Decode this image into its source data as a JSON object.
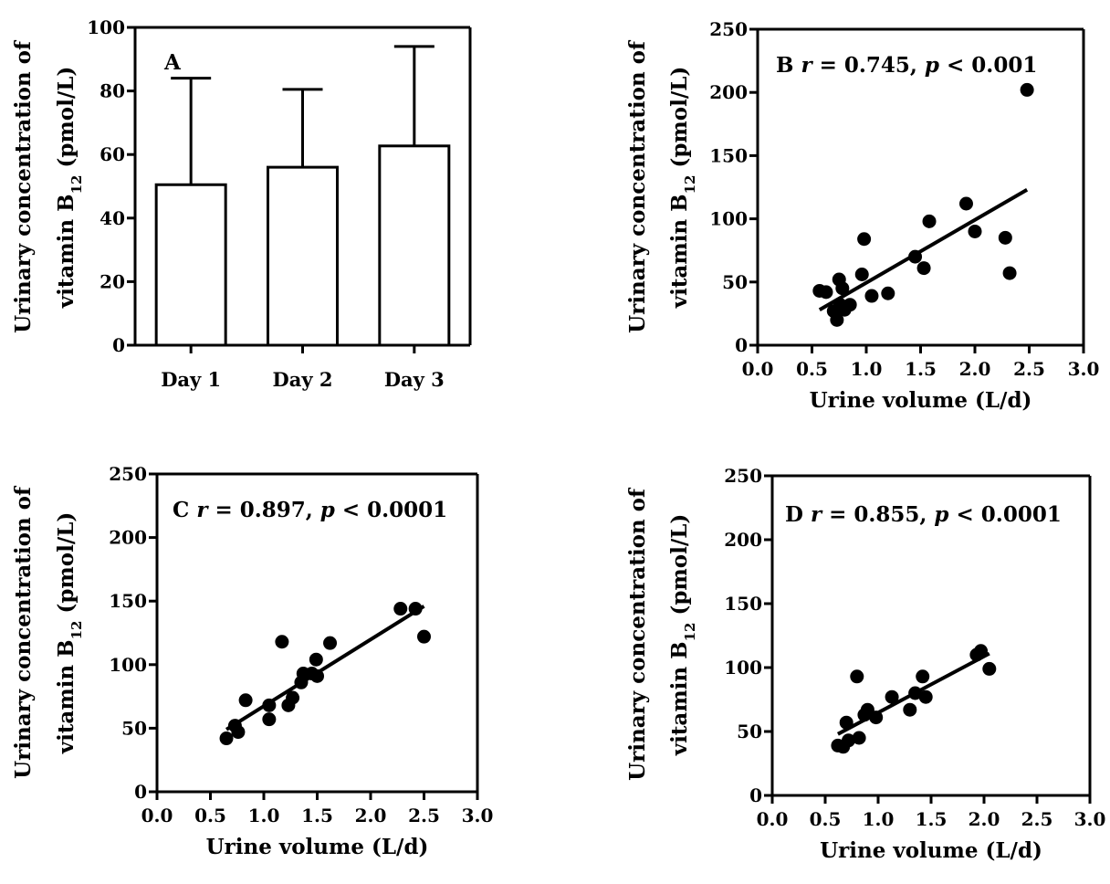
{
  "chart_data": [
    {
      "panel": "A",
      "type": "bar",
      "annotation": {
        "letter": "A"
      },
      "categories": [
        "Day 1",
        "Day 2",
        "Day 3"
      ],
      "values": [
        50.5,
        56,
        62.7
      ],
      "error_upper": [
        84,
        80.5,
        94
      ],
      "ylabel_lines": [
        "Urinary concentration of",
        "vitamin B",
        "12",
        " (pmol/L)"
      ],
      "ylim": [
        0,
        100
      ],
      "yticks": [
        0,
        20,
        40,
        60,
        80,
        100
      ],
      "grid": false
    },
    {
      "panel": "B",
      "type": "scatter",
      "annotation": {
        "letter": "B",
        "r_label": "r",
        "r_text": " = 0.745, ",
        "p_label": "p",
        "p_text": " < 0.001"
      },
      "x": [
        0.57,
        0.63,
        0.7,
        0.73,
        0.75,
        0.76,
        0.78,
        0.8,
        0.85,
        0.96,
        0.98,
        1.05,
        1.2,
        1.45,
        1.53,
        1.58,
        1.92,
        2.0,
        2.28,
        2.32,
        2.48
      ],
      "y": [
        43,
        42,
        27,
        20,
        52,
        32,
        45,
        28,
        32,
        56,
        84,
        39,
        41,
        70,
        61,
        98,
        112,
        90,
        85,
        57,
        202
      ],
      "trendline": [
        [
          0.57,
          28
        ],
        [
          2.48,
          123
        ]
      ],
      "xlabel": "Urine volume (L/d)",
      "ylabel_lines": [
        "Urinary concentration of",
        "vitamin B",
        "12",
        " (pmol/L)"
      ],
      "xlim": [
        0,
        3
      ],
      "ylim": [
        0,
        250
      ],
      "xticks": [
        "0.0",
        "0.5",
        "1.0",
        "1.5",
        "2.0",
        "2.5",
        "3.0"
      ],
      "yticks": [
        0,
        50,
        100,
        150,
        200,
        250
      ],
      "grid": false
    },
    {
      "panel": "C",
      "type": "scatter",
      "annotation": {
        "letter": "C",
        "r_label": "r",
        "r_text": " = 0.897, ",
        "p_label": "p",
        "p_text": " < 0.0001"
      },
      "x": [
        0.65,
        0.73,
        0.76,
        0.83,
        1.05,
        1.05,
        1.17,
        1.23,
        1.27,
        1.35,
        1.37,
        1.45,
        1.49,
        1.5,
        1.62,
        2.28,
        2.42,
        2.5
      ],
      "y": [
        42,
        52,
        47,
        72,
        68,
        57,
        118,
        68,
        74,
        86,
        93,
        93,
        104,
        91,
        117,
        144,
        144,
        122
      ],
      "trendline": [
        [
          0.65,
          49
        ],
        [
          2.5,
          146
        ]
      ],
      "xlabel": "Urine volume (L/d)",
      "ylabel_lines": [
        "Urinary concentration of",
        "vitamin B",
        "12",
        " (pmol/L)"
      ],
      "xlim": [
        0,
        3
      ],
      "ylim": [
        0,
        250
      ],
      "xticks": [
        "0.0",
        "0.5",
        "1.0",
        "1.5",
        "2.0",
        "2.5",
        "3.0"
      ],
      "yticks": [
        0,
        50,
        100,
        150,
        200,
        250
      ],
      "grid": false
    },
    {
      "panel": "D",
      "type": "scatter",
      "annotation": {
        "letter": "D",
        "r_label": "r",
        "r_text": " = 0.855, ",
        "p_label": "p",
        "p_text": " < 0.0001"
      },
      "x": [
        0.62,
        0.67,
        0.7,
        0.72,
        0.8,
        0.82,
        0.87,
        0.9,
        0.98,
        1.13,
        1.3,
        1.35,
        1.42,
        1.45,
        1.93,
        1.97,
        2.05
      ],
      "y": [
        39,
        38,
        57,
        43,
        93,
        45,
        63,
        67,
        61,
        77,
        67,
        80,
        93,
        77,
        110,
        113,
        99
      ],
      "trendline": [
        [
          0.62,
          48
        ],
        [
          2.05,
          111
        ]
      ],
      "xlabel": "Urine volume (L/d)",
      "ylabel_lines": [
        "Urinary concentration of",
        "vitamin B",
        "12",
        " (pmol/L)"
      ],
      "xlim": [
        0,
        3
      ],
      "ylim": [
        0,
        250
      ],
      "xticks": [
        "0.0",
        "0.5",
        "1.0",
        "1.5",
        "2.0",
        "2.5",
        "3.0"
      ],
      "yticks": [
        0,
        50,
        100,
        150,
        200,
        250
      ],
      "grid": false
    }
  ]
}
